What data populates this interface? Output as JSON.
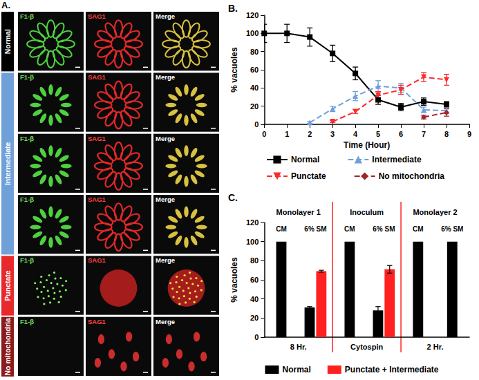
{
  "image_panel": {
    "label": "A.",
    "columns": [
      "F1-β",
      "SAG1",
      "Merge"
    ],
    "groups": [
      {
        "label": "Normal",
        "rows": 1,
        "color": "#000000"
      },
      {
        "label": "Intermediate",
        "rows": 3,
        "color": "#6fa0d8"
      },
      {
        "label": "Punctate",
        "rows": 1,
        "color": "#e8292b"
      },
      {
        "label": "No mitochondria",
        "rows": 1,
        "color": "#8b1a1a"
      }
    ]
  },
  "chart_data": [
    {
      "type": "line",
      "title": "B.",
      "x_label": "Time (Hour)",
      "y_label": "% vacuoles",
      "x": [
        0,
        1,
        2,
        3,
        4,
        5,
        6,
        7,
        8
      ],
      "xlim": [
        0,
        9
      ],
      "xticks": [
        0,
        1,
        2,
        3,
        4,
        5,
        6,
        7,
        8,
        9
      ],
      "ylim": [
        0,
        120
      ],
      "yticks": [
        0,
        20,
        40,
        60,
        80,
        100,
        120
      ],
      "grid": false,
      "legend": "bottom",
      "series": [
        {
          "name": "Normal",
          "color": "#000000",
          "marker": "square",
          "line_style": "solid",
          "values": [
            100,
            100,
            96,
            78,
            56,
            27,
            19,
            25,
            22
          ],
          "errors": [
            10,
            10,
            10,
            9,
            7,
            5,
            4,
            4,
            3
          ]
        },
        {
          "name": "Intermediate",
          "color": "#6fa0d8",
          "marker": "triangle",
          "line_style": "dashed",
          "values": [
            null,
            null,
            2,
            17,
            31,
            42,
            40,
            16,
            15
          ],
          "errors": [
            null,
            null,
            1,
            3,
            5,
            6,
            5,
            3,
            3
          ]
        },
        {
          "name": "Punctate",
          "color": "#ff2a2a",
          "marker": "triangle-down",
          "line_style": "dashed",
          "values": [
            null,
            null,
            null,
            3,
            14,
            32,
            38,
            52,
            49
          ],
          "errors": [
            null,
            null,
            null,
            1,
            2,
            4,
            5,
            5,
            6
          ]
        },
        {
          "name": "No mitochondria",
          "color": "#a0262a",
          "marker": "diamond",
          "line_style": "dashed",
          "values": [
            null,
            null,
            null,
            null,
            null,
            null,
            null,
            8,
            13
          ],
          "errors": [
            null,
            null,
            null,
            null,
            null,
            null,
            null,
            2,
            4
          ]
        }
      ]
    },
    {
      "type": "bar",
      "title": "C.",
      "y_label": "% vacuoles",
      "categories": [
        "CM",
        "6% SM",
        "CM",
        "6% SM",
        "CM",
        "6% SM"
      ],
      "groups": [
        {
          "label": "Monolayer 1",
          "sublabel": "8 Hr."
        },
        {
          "label": "Inoculum",
          "sublabel": "Cytospin"
        },
        {
          "label": "Monolayer 2",
          "sublabel": "2 Hr."
        }
      ],
      "ylim": [
        0,
        120
      ],
      "yticks": [
        0,
        20,
        40,
        60,
        80,
        100,
        120
      ],
      "grid": false,
      "legend": "bottom",
      "series": [
        {
          "name": "Normal",
          "color": "#000000",
          "values": [
            100,
            31,
            100,
            28,
            100,
            100
          ],
          "errors": [
            0,
            1,
            0,
            4,
            0,
            0
          ]
        },
        {
          "name": "Punctate + Intermediate",
          "color": "#ff2020",
          "values": [
            0,
            69,
            0,
            71,
            0,
            0
          ],
          "errors": [
            0,
            1,
            0,
            4,
            0,
            0
          ]
        }
      ]
    }
  ]
}
